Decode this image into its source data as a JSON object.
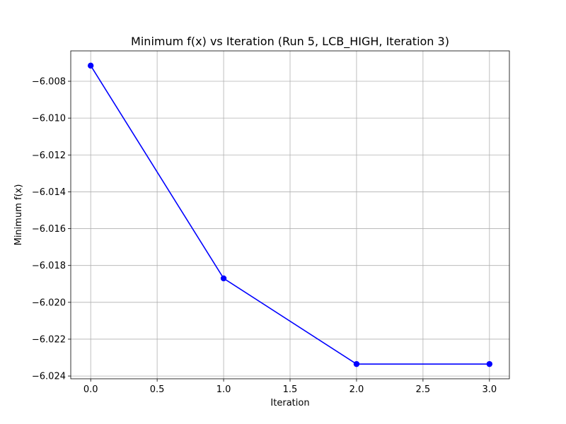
{
  "chart_data": {
    "type": "line",
    "title": "Minimum f(x) vs Iteration (Run 5, LCB_HIGH, Iteration 3)",
    "xlabel": "Iteration",
    "ylabel": "Minimum f(x)",
    "x": [
      0,
      1,
      2,
      3
    ],
    "series": [
      {
        "values": [
          -6.00715,
          -6.0187,
          -6.02335,
          -6.02335
        ],
        "color": "#0000ff",
        "marker": "circle"
      }
    ],
    "xlim": [
      -0.15,
      3.15
    ],
    "ylim": [
      -6.02415,
      -6.00635
    ],
    "xticks": [
      0.0,
      0.5,
      1.0,
      1.5,
      2.0,
      2.5,
      3.0
    ],
    "xtick_labels": [
      "0.0",
      "0.5",
      "1.0",
      "1.5",
      "2.0",
      "2.5",
      "3.0"
    ],
    "yticks": [
      -6.008,
      -6.01,
      -6.012,
      -6.014,
      -6.016,
      -6.018,
      -6.02,
      -6.022,
      -6.024
    ],
    "ytick_labels": [
      "−6.008",
      "−6.010",
      "−6.012",
      "−6.014",
      "−6.016",
      "−6.018",
      "−6.020",
      "−6.022",
      "−6.024"
    ],
    "grid": true,
    "legend": "none"
  }
}
